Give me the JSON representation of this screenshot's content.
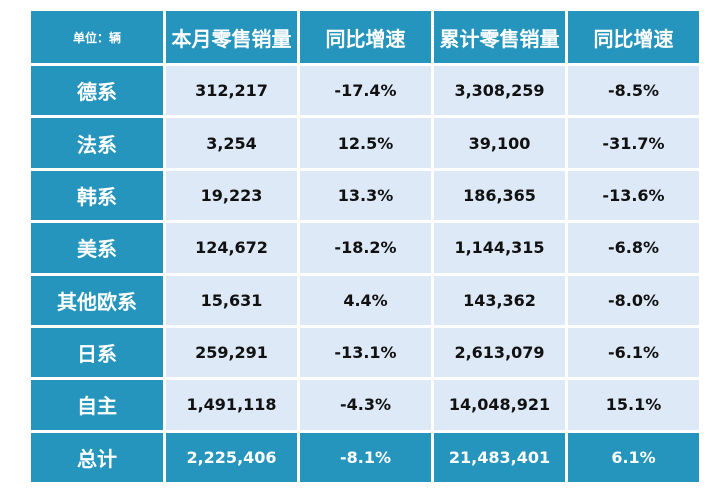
{
  "table": {
    "unit_label": "单位：辆",
    "headers": [
      "本月零售销量",
      "同比增速",
      "累计零售销量",
      "同比增速"
    ],
    "rows": [
      {
        "label": "德系",
        "cells": [
          "312,217",
          "-17.4%",
          "3,308,259",
          "-8.5%"
        ]
      },
      {
        "label": "法系",
        "cells": [
          "3,254",
          "12.5%",
          "39,100",
          "-31.7%"
        ]
      },
      {
        "label": "韩系",
        "cells": [
          "19,223",
          "13.3%",
          "186,365",
          "-13.6%"
        ]
      },
      {
        "label": "美系",
        "cells": [
          "124,672",
          "-18.2%",
          "1,144,315",
          "-6.8%"
        ]
      },
      {
        "label": "其他欧系",
        "cells": [
          "15,631",
          "4.4%",
          "143,362",
          "-8.0%"
        ]
      },
      {
        "label": "日系",
        "cells": [
          "259,291",
          "-13.1%",
          "2,613,079",
          "-6.1%"
        ]
      },
      {
        "label": "自主",
        "cells": [
          "1,491,118",
          "-4.3%",
          "14,048,921",
          "15.1%"
        ]
      }
    ],
    "total": {
      "label": "总计",
      "cells": [
        "2,225,406",
        "-8.1%",
        "21,483,401",
        "6.1%"
      ]
    }
  },
  "colors": {
    "header_bg": "#2595bd",
    "cell_bg": "#dde9f6",
    "header_text": "#ffffff",
    "cell_text": "#111111"
  }
}
